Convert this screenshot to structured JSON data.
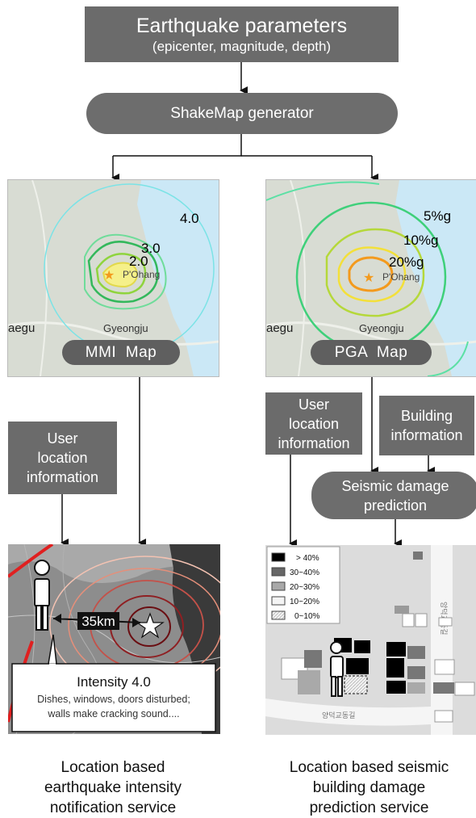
{
  "top_box": {
    "title": "Earthquake parameters",
    "subtitle": "(epicenter, magnitude, depth)"
  },
  "shakemap": {
    "label": "ShakeMap generator"
  },
  "mmi_map": {
    "label": "MMI  Map",
    "contours": [
      "4.0",
      "3.0",
      "2.0"
    ],
    "places": [
      "P'Ohang",
      "Gyeongju",
      "aegu"
    ]
  },
  "pga_map": {
    "label": "PGA  Map",
    "contours": [
      "5%g",
      "10%g",
      "20%g"
    ],
    "places": [
      "P'Ohang",
      "Gyeongju",
      "aegu"
    ]
  },
  "left_user_location": {
    "line1": "User",
    "line2": "location",
    "line3": "information"
  },
  "right_user_location": {
    "line1": "User",
    "line2": "location",
    "line3": "information"
  },
  "building_info": {
    "line1": "Building",
    "line2": "information"
  },
  "seismic_prediction": {
    "line1": "Seismic damage",
    "line2": "prediction"
  },
  "intensity_panel": {
    "distance": "35km",
    "title": "Intensity 4.0",
    "desc_line1": "Dishes, windows, doors disturbed;",
    "desc_line2": "walls make cracking sound...."
  },
  "damage_legend": {
    "items": [
      {
        "label": "> 40%",
        "color": "#000000"
      },
      {
        "label": "30~40%",
        "color": "#666666"
      },
      {
        "label": "20~30%",
        "color": "#a8a8a8"
      },
      {
        "label": "10~20%",
        "color": "#f4f4f4"
      },
      {
        "label": "0~10%",
        "color": "hatched"
      }
    ]
  },
  "captions": {
    "left_line1": "Location based",
    "left_line2": "earthquake intensity",
    "left_line3": "notification service",
    "right_line1": "Location based seismic",
    "right_line2": "building damage",
    "right_line3": "prediction service"
  }
}
